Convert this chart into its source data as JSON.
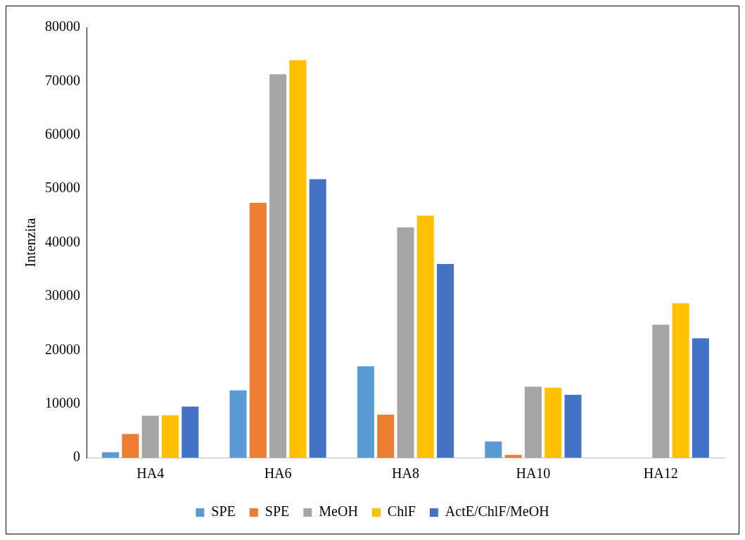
{
  "chart_data": {
    "type": "bar",
    "ylabel": "Intenzita",
    "categories": [
      "HA4",
      "HA6",
      "HA8",
      "HA10",
      "HA12"
    ],
    "series": [
      {
        "name": "SPE",
        "color": "#5b9bd5",
        "values": [
          1000,
          12500,
          17000,
          3000,
          0
        ]
      },
      {
        "name": "SPE",
        "color": "#ed7d31",
        "values": [
          4400,
          47400,
          8000,
          500,
          0
        ]
      },
      {
        "name": "MeOH",
        "color": "#a5a5a5",
        "values": [
          7800,
          71300,
          42800,
          13200,
          24700
        ]
      },
      {
        "name": "ChlF",
        "color": "#ffc000",
        "values": [
          7900,
          73900,
          45000,
          13000,
          28700
        ]
      },
      {
        "name": "ActE/ChlF/MeOH",
        "color": "#4472c4",
        "values": [
          9500,
          51800,
          36000,
          11700,
          22200
        ]
      }
    ],
    "ylim": [
      0,
      80000
    ],
    "yticks": [
      0,
      10000,
      20000,
      30000,
      40000,
      50000,
      60000,
      70000,
      80000
    ],
    "grid": false,
    "legend": "bottom"
  }
}
